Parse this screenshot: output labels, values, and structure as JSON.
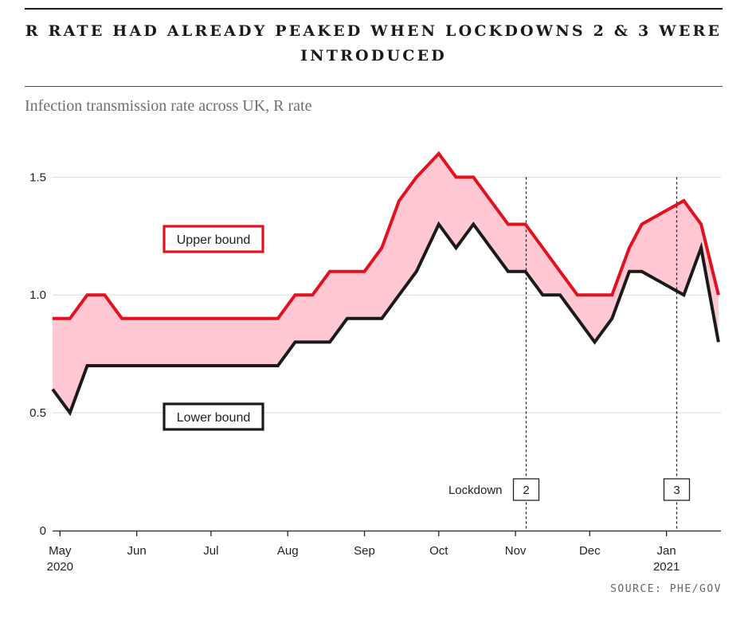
{
  "header": {
    "title": "R RATE HAD ALREADY PEAKED WHEN LOCKDOWNS 2 & 3 WERE INTRODUCED",
    "subtitle": "Infection transmission rate across UK, R rate",
    "source": "SOURCE: PHE/GOV"
  },
  "colors": {
    "upper": "#e3101f",
    "lower": "#1a1a1a",
    "band": "#ffc8d2",
    "grid": "#d9d9d9"
  },
  "chart_data": {
    "type": "area",
    "title": "R RATE HAD ALREADY PEAKED WHEN LOCKDOWNS 2 & 3 WERE INTRODUCED",
    "subtitle": "Infection transmission rate across UK, R rate",
    "xlabel": "",
    "ylabel": "",
    "x_range": [
      "2020-04-28",
      "2021-01-23"
    ],
    "ylim": [
      0,
      1.65
    ],
    "yticks": [
      0,
      0.5,
      1.0,
      1.5
    ],
    "ytick_labels": [
      "0",
      "0.5",
      "1.0",
      "1.5"
    ],
    "grid": true,
    "xticks": [
      {
        "date": "2020-05-01",
        "label": "May",
        "sublabel": "2020"
      },
      {
        "date": "2020-06-01",
        "label": "Jun",
        "sublabel": ""
      },
      {
        "date": "2020-07-01",
        "label": "Jul",
        "sublabel": ""
      },
      {
        "date": "2020-08-01",
        "label": "Aug",
        "sublabel": ""
      },
      {
        "date": "2020-09-01",
        "label": "Sep",
        "sublabel": ""
      },
      {
        "date": "2020-10-01",
        "label": "Oct",
        "sublabel": ""
      },
      {
        "date": "2020-11-01",
        "label": "Nov",
        "sublabel": ""
      },
      {
        "date": "2020-12-01",
        "label": "Dec",
        "sublabel": ""
      },
      {
        "date": "2021-01-01",
        "label": "Jan",
        "sublabel": "2021"
      }
    ],
    "series": [
      {
        "name": "Upper bound",
        "points": [
          [
            "2020-04-28",
            0.9
          ],
          [
            "2020-05-05",
            0.9
          ],
          [
            "2020-05-12",
            1.0
          ],
          [
            "2020-05-19",
            1.0
          ],
          [
            "2020-05-26",
            0.9
          ],
          [
            "2020-06-02",
            0.9
          ],
          [
            "2020-06-09",
            0.9
          ],
          [
            "2020-06-16",
            0.9
          ],
          [
            "2020-06-23",
            0.9
          ],
          [
            "2020-06-30",
            0.9
          ],
          [
            "2020-07-07",
            0.9
          ],
          [
            "2020-07-14",
            0.9
          ],
          [
            "2020-07-21",
            0.9
          ],
          [
            "2020-07-28",
            0.9
          ],
          [
            "2020-08-04",
            1.0
          ],
          [
            "2020-08-11",
            1.0
          ],
          [
            "2020-08-18",
            1.1
          ],
          [
            "2020-08-25",
            1.1
          ],
          [
            "2020-09-01",
            1.1
          ],
          [
            "2020-09-08",
            1.2
          ],
          [
            "2020-09-15",
            1.4
          ],
          [
            "2020-09-22",
            1.5
          ],
          [
            "2020-10-01",
            1.6
          ],
          [
            "2020-10-08",
            1.5
          ],
          [
            "2020-10-15",
            1.5
          ],
          [
            "2020-10-22",
            1.4
          ],
          [
            "2020-10-29",
            1.3
          ],
          [
            "2020-11-05",
            1.3
          ],
          [
            "2020-11-12",
            1.2
          ],
          [
            "2020-11-19",
            1.1
          ],
          [
            "2020-11-26",
            1.0
          ],
          [
            "2020-12-03",
            1.0
          ],
          [
            "2020-12-10",
            1.0
          ],
          [
            "2020-12-17",
            1.2
          ],
          [
            "2020-12-22",
            1.3
          ],
          [
            "2021-01-08",
            1.4
          ],
          [
            "2021-01-15",
            1.3
          ],
          [
            "2021-01-22",
            1.0
          ]
        ]
      },
      {
        "name": "Lower bound",
        "points": [
          [
            "2020-04-28",
            0.6
          ],
          [
            "2020-05-05",
            0.5
          ],
          [
            "2020-05-12",
            0.7
          ],
          [
            "2020-05-19",
            0.7
          ],
          [
            "2020-05-26",
            0.7
          ],
          [
            "2020-06-02",
            0.7
          ],
          [
            "2020-06-09",
            0.7
          ],
          [
            "2020-06-16",
            0.7
          ],
          [
            "2020-06-23",
            0.7
          ],
          [
            "2020-06-30",
            0.7
          ],
          [
            "2020-07-07",
            0.7
          ],
          [
            "2020-07-14",
            0.7
          ],
          [
            "2020-07-21",
            0.7
          ],
          [
            "2020-07-28",
            0.7
          ],
          [
            "2020-08-04",
            0.8
          ],
          [
            "2020-08-11",
            0.8
          ],
          [
            "2020-08-18",
            0.8
          ],
          [
            "2020-08-25",
            0.9
          ],
          [
            "2020-09-01",
            0.9
          ],
          [
            "2020-09-08",
            0.9
          ],
          [
            "2020-09-15",
            1.0
          ],
          [
            "2020-09-22",
            1.1
          ],
          [
            "2020-10-01",
            1.3
          ],
          [
            "2020-10-08",
            1.2
          ],
          [
            "2020-10-15",
            1.3
          ],
          [
            "2020-10-22",
            1.2
          ],
          [
            "2020-10-29",
            1.1
          ],
          [
            "2020-11-05",
            1.1
          ],
          [
            "2020-11-12",
            1.0
          ],
          [
            "2020-11-19",
            1.0
          ],
          [
            "2020-11-26",
            0.9
          ],
          [
            "2020-12-03",
            0.8
          ],
          [
            "2020-12-10",
            0.9
          ],
          [
            "2020-12-17",
            1.1
          ],
          [
            "2020-12-22",
            1.1
          ],
          [
            "2021-01-08",
            1.0
          ],
          [
            "2021-01-15",
            1.2
          ],
          [
            "2021-01-22",
            0.8
          ]
        ]
      }
    ],
    "annotations": [
      {
        "type": "vline",
        "date": "2020-11-05",
        "label": "2",
        "prefix": "Lockdown"
      },
      {
        "type": "vline",
        "date": "2021-01-05",
        "label": "3",
        "prefix": ""
      }
    ],
    "legend": [
      {
        "label": "Upper bound",
        "placement": "upper-left inside band"
      },
      {
        "label": "Lower bound",
        "placement": "lower-left below band"
      }
    ]
  }
}
